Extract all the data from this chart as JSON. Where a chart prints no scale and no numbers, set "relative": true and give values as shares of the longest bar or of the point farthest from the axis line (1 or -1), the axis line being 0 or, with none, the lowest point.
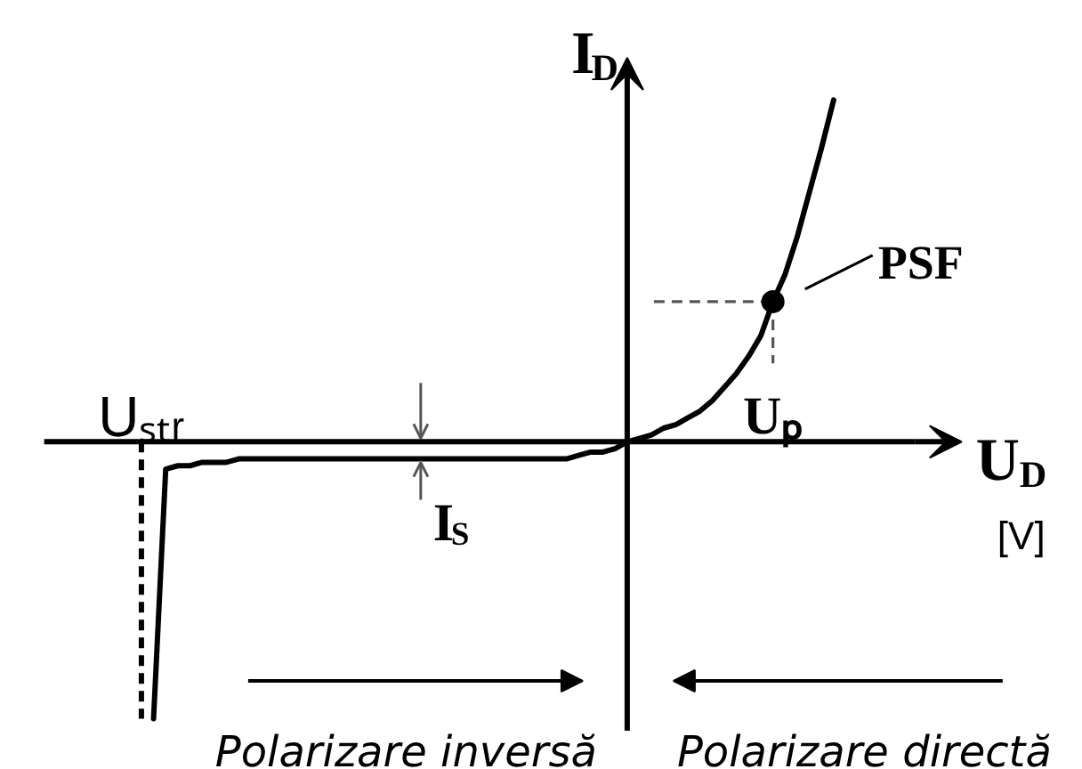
{
  "chart_data": {
    "type": "line",
    "relative": true,
    "xlabel": "U$_{D}$",
    "ylabel": "I$_{D}$",
    "categories": [
      "Uₛₜᵣ",
      null,
      null,
      null,
      null,
      null,
      null,
      null,
      null,
      null,
      null,
      null,
      null,
      null,
      null,
      null,
      null,
      null,
      null,
      null,
      null,
      null,
      null,
      null,
      null,
      null,
      null,
      null,
      null,
      null,
      null,
      null,
      null,
      null,
      null,
      null,
      null,
      null,
      null,
      null,
      null,
      null,
      null,
      null,
      null,
      null,
      null,
      null,
      null,
      null,
      null,
      null,
      "Uₚ",
      null,
      null,
      null,
      null,
      null
    ],
    "series": [
      {
        "color": "#000000",
        "values": [
          null,
          -0.81,
          -0.08,
          -0.07,
          -0.07,
          -0.06,
          -0.06,
          -0.06,
          -0.05,
          -0.05,
          -0.05,
          -0.05,
          -0.05,
          -0.05,
          -0.05,
          -0.05,
          -0.05,
          -0.05,
          -0.05,
          -0.05,
          -0.05,
          -0.05,
          -0.05,
          -0.05,
          -0.05,
          -0.05,
          -0.05,
          -0.05,
          -0.05,
          -0.05,
          -0.05,
          -0.05,
          -0.05,
          -0.05,
          -0.05,
          -0.05,
          -0.04,
          -0.03,
          -0.03,
          -0.02,
          0,
          0.01,
          0.02,
          0.04,
          0.05,
          0.07,
          0.09,
          0.12,
          0.16,
          0.2,
          0.25,
          0.31,
          0.41,
          0.49,
          0.6,
          0.73,
          0.86,
          1
        ]
      },
      {
        "type": "line",
        "color": "#000000",
        "line_style": "dashed",
        "x": [
          "Uₛₜᵣ",
          "Uₛₜᵣ"
        ],
        "values": [
          0,
          -0.81
        ]
      },
      {
        "type": "scatter",
        "name": "PSF",
        "color": "#000000",
        "marker": "circle",
        "x": [
          "Uₚ"
        ],
        "values": [
          0.41
        ]
      }
    ],
    "ref_lines": [
      {
        "axis": "y",
        "value": 0.41,
        "color": "#555555",
        "line_style": "dashed"
      },
      {
        "axis": "x",
        "value": "Uₚ",
        "color": "#555555",
        "line_style": "dashed"
      }
    ],
    "annotations": [
      "I$_{S}$",
      "[V]",
      "Polarizare inversă",
      "Polarizare directă"
    ]
  }
}
